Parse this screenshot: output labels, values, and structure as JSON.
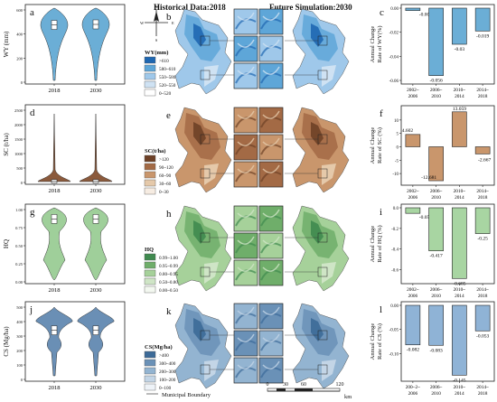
{
  "header": {
    "historical": "Historical Data:2018",
    "future": "Future Simulation:2030"
  },
  "footer": {
    "boundary": "Municipal Boundary",
    "km": "km",
    "scale_ticks": [
      "0",
      "30",
      "60",
      "120"
    ]
  },
  "compass": {
    "n": "N",
    "s": "S",
    "e": "E",
    "w": "W"
  },
  "colors": {
    "wy": [
      "#ffffff",
      "#cfe2f3",
      "#9fc8ea",
      "#5ea6d8",
      "#1f67b1"
    ],
    "sc": [
      "#f6ece2",
      "#e5c9aa",
      "#c9966c",
      "#a36a45",
      "#6e4127"
    ],
    "hq": [
      "#f3f8f0",
      "#cfe5c6",
      "#a6d19a",
      "#6fae6a",
      "#3f8a4f"
    ],
    "cs": [
      "#eef3f8",
      "#c3d5e6",
      "#93b4d1",
      "#6a91b7",
      "#3c6a98"
    ]
  },
  "panels": {
    "a": {
      "letter": "a",
      "ylabel": "WY (mm)",
      "ticks": [
        "0",
        "200",
        "400",
        "600"
      ]
    },
    "d": {
      "letter": "d",
      "ylabel": "SC (t/ha)",
      "ticks": [
        "0",
        "500",
        "1000",
        "1500",
        "2000",
        "2500"
      ]
    },
    "g": {
      "letter": "g",
      "ylabel": "HQ",
      "ticks": [
        "0.00",
        "0.25",
        "0.50",
        "0.75",
        "1.00"
      ]
    },
    "j": {
      "letter": "j",
      "ylabel": "CS (Mg/ha)",
      "ticks": [
        "0",
        "100",
        "200",
        "300",
        "400",
        "500"
      ]
    },
    "b": {
      "letter": "b",
      "legend_title": "WY(mm)",
      "legend": [
        ">610",
        "580~610",
        "550~580",
        "520~550",
        "0~520"
      ]
    },
    "e": {
      "letter": "e",
      "legend_title": "SC(t/ha)",
      "legend": [
        ">120",
        "90~120",
        "60~90",
        "30~60",
        "0~30"
      ]
    },
    "h": {
      "letter": "h",
      "legend_title": "HQ",
      "legend": [
        "0.99~1.00",
        "0.95~0.99",
        "0.80~0.95",
        "0.50~0.80",
        "0.00~0.50"
      ]
    },
    "k": {
      "letter": "k",
      "legend_title": "CS(Mg/ha)",
      "legend": [
        ">400",
        "300~400",
        "200~300",
        "100~200",
        "0~100"
      ]
    },
    "c": {
      "letter": "c",
      "ylabel1": "Annual Change",
      "ylabel2": "Rate of WY(%)",
      "ticks": [
        "0.00",
        "-0.02",
        "-0.04",
        "-0.06"
      ]
    },
    "f": {
      "letter": "f",
      "ylabel1": "Annual Change",
      "ylabel2": "Rate of SC (%)",
      "ticks": [
        "-10",
        "-5",
        "0",
        "5",
        "10"
      ]
    },
    "i": {
      "letter": "i",
      "ylabel1": "Annual Change",
      "ylabel2": "Rate of HQ (%)",
      "ticks": [
        "0.0",
        "-0.2",
        "-0.4",
        "-0.6"
      ]
    },
    "l": {
      "letter": "l",
      "ylabel1": "Annual Change",
      "ylabel2": "Rate of CS (%)",
      "ticks": [
        "0.00",
        "-0.05",
        "-0.10"
      ]
    }
  },
  "chart_data": [
    {
      "type": "violin",
      "panel": "a",
      "categories": [
        "2018",
        "2030"
      ],
      "ylabel": "WY (mm)",
      "ylim": [
        0,
        700
      ],
      "medians": [
        555,
        560
      ],
      "color": "#6baed6"
    },
    {
      "type": "violin",
      "panel": "d",
      "categories": [
        "2018",
        "2030"
      ],
      "ylabel": "SC (t/ha)",
      "ylim": [
        0,
        2500
      ],
      "medians": [
        40,
        40
      ],
      "color": "#8b5a3c"
    },
    {
      "type": "violin",
      "panel": "g",
      "categories": [
        "2018",
        "2030"
      ],
      "ylabel": "HQ",
      "ylim": [
        0,
        1
      ],
      "medians": [
        0.87,
        0.87
      ],
      "color": "#9fcf9a"
    },
    {
      "type": "violin",
      "panel": "j",
      "categories": [
        "2018",
        "2030"
      ],
      "ylabel": "CS (Mg/ha)",
      "ylim": [
        0,
        500
      ],
      "medians": [
        340,
        340
      ],
      "color": "#6a8fb5"
    },
    {
      "type": "bar",
      "panel": "c",
      "categories": [
        "2002~2006",
        "2006~2010",
        "2010~2014",
        "2014~2018"
      ],
      "values": [
        -0.002,
        -0.056,
        -0.03,
        -0.019
      ],
      "ylim": [
        -0.06,
        0.0
      ],
      "color": "#6baed6"
    },
    {
      "type": "bar",
      "panel": "f",
      "categories": [
        "2002~2006",
        "2006~2010",
        "2010~2014",
        "2014~2018"
      ],
      "values": [
        4.602,
        -12.681,
        13.059,
        -2.667
      ],
      "ylim": [
        -13,
        14
      ],
      "color": "#c9966c"
    },
    {
      "type": "bar",
      "panel": "i",
      "categories": [
        "2002~2006",
        "2006~2010",
        "2010~2014",
        "2014~2018"
      ],
      "values": [
        -0.054,
        -0.417,
        -0.685,
        -0.25
      ],
      "ylim": [
        -0.7,
        0.0
      ],
      "color": "#a8d5a2"
    },
    {
      "type": "bar",
      "panel": "l",
      "categories": [
        "200~2~2006",
        "2006~2010",
        "2010~2014",
        "2014~2018"
      ],
      "values": [
        -0.082,
        -0.083,
        -0.145,
        -0.053
      ],
      "ylim": [
        -0.15,
        0.0
      ],
      "color": "#8fb3d6"
    }
  ]
}
